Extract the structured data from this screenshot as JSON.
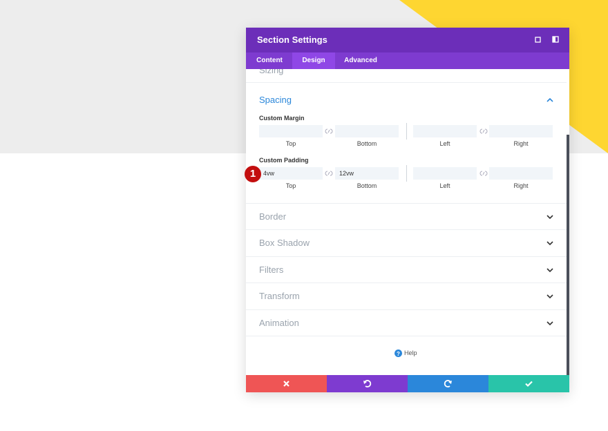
{
  "panel": {
    "title": "Section Settings",
    "tabs": [
      "Content",
      "Design",
      "Advanced"
    ],
    "active_tab": 1,
    "partial_section": "Sizing",
    "open_section": {
      "title": "Spacing",
      "groups": [
        {
          "label": "Custom Margin",
          "fields": [
            {
              "label": "Top",
              "value": ""
            },
            {
              "label": "Bottom",
              "value": ""
            },
            {
              "label": "Left",
              "value": ""
            },
            {
              "label": "Right",
              "value": ""
            }
          ]
        },
        {
          "label": "Custom Padding",
          "fields": [
            {
              "label": "Top",
              "value": "4vw"
            },
            {
              "label": "Bottom",
              "value": "12vw"
            },
            {
              "label": "Left",
              "value": ""
            },
            {
              "label": "Right",
              "value": ""
            }
          ]
        }
      ]
    },
    "sections": [
      "Border",
      "Box Shadow",
      "Filters",
      "Transform",
      "Animation"
    ],
    "help": "Help"
  },
  "badge": "1"
}
